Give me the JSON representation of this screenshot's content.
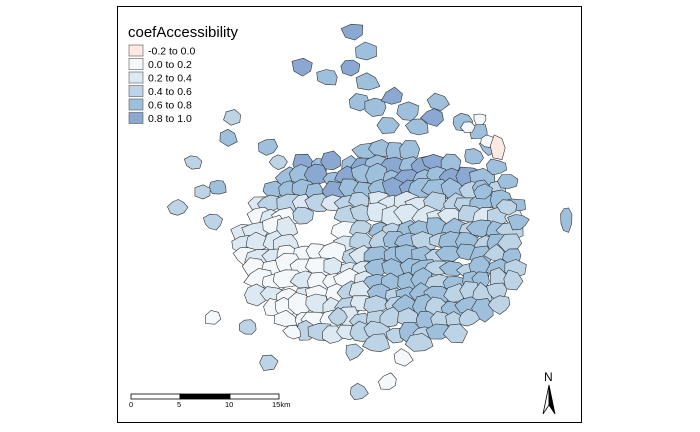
{
  "legend": {
    "title": "coefAccessibility",
    "items": [
      {
        "label": "-0.2 to 0.0",
        "color": "#fde9e2"
      },
      {
        "label": "0.0 to 0.2",
        "color": "#f4f8fb"
      },
      {
        "label": "0.2 to 0.4",
        "color": "#dce9f2"
      },
      {
        "label": "0.4 to 0.6",
        "color": "#bcd4e6"
      },
      {
        "label": "0.6 to 0.8",
        "color": "#9ec0dc"
      },
      {
        "label": "0.8 to 1.0",
        "color": "#8aa8d1"
      }
    ]
  },
  "scale_bar": {
    "ticks": [
      "0",
      "5",
      "10",
      "15"
    ],
    "unit": "km"
  },
  "north_arrow": {
    "label": "N"
  },
  "colors": {
    "border": "#333333",
    "frame": "#000000"
  }
}
